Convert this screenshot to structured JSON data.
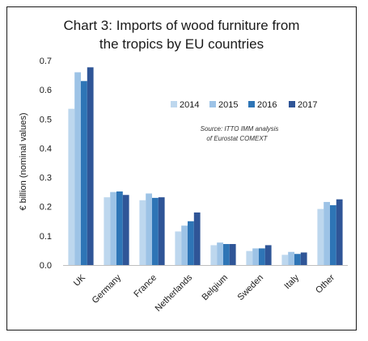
{
  "chart_data": {
    "type": "bar",
    "title_line1": "Chart 3: Imports of wood furniture from",
    "title_line2": "the tropics by EU countries",
    "ylabel": "€ billion (nominal values)",
    "xlabel": "",
    "ylim": [
      0,
      0.7
    ],
    "yticks": [
      "0.0",
      "0.1",
      "0.2",
      "0.3",
      "0.4",
      "0.5",
      "0.6",
      "0.7"
    ],
    "grid": false,
    "legend_position": "upper-right",
    "categories": [
      "UK",
      "Germany",
      "France",
      "Netherlands",
      "Belgium",
      "Sweden",
      "Italy",
      "Other"
    ],
    "series": [
      {
        "name": "2014",
        "color": "#bdd7ee",
        "values": [
          0.535,
          0.232,
          0.222,
          0.115,
          0.068,
          0.048,
          0.035,
          0.192
        ]
      },
      {
        "name": "2015",
        "color": "#9dc3e6",
        "values": [
          0.66,
          0.25,
          0.245,
          0.135,
          0.077,
          0.057,
          0.045,
          0.216
        ]
      },
      {
        "name": "2016",
        "color": "#2e75b6",
        "values": [
          0.63,
          0.252,
          0.23,
          0.15,
          0.072,
          0.057,
          0.038,
          0.205
        ]
      },
      {
        "name": "2017",
        "color": "#2f5597",
        "values": [
          0.677,
          0.24,
          0.232,
          0.18,
          0.072,
          0.068,
          0.043,
          0.225
        ]
      }
    ],
    "source_line1": "Source: ITTO IMM analysis",
    "source_line2": "of Eurostat COMEXT"
  }
}
